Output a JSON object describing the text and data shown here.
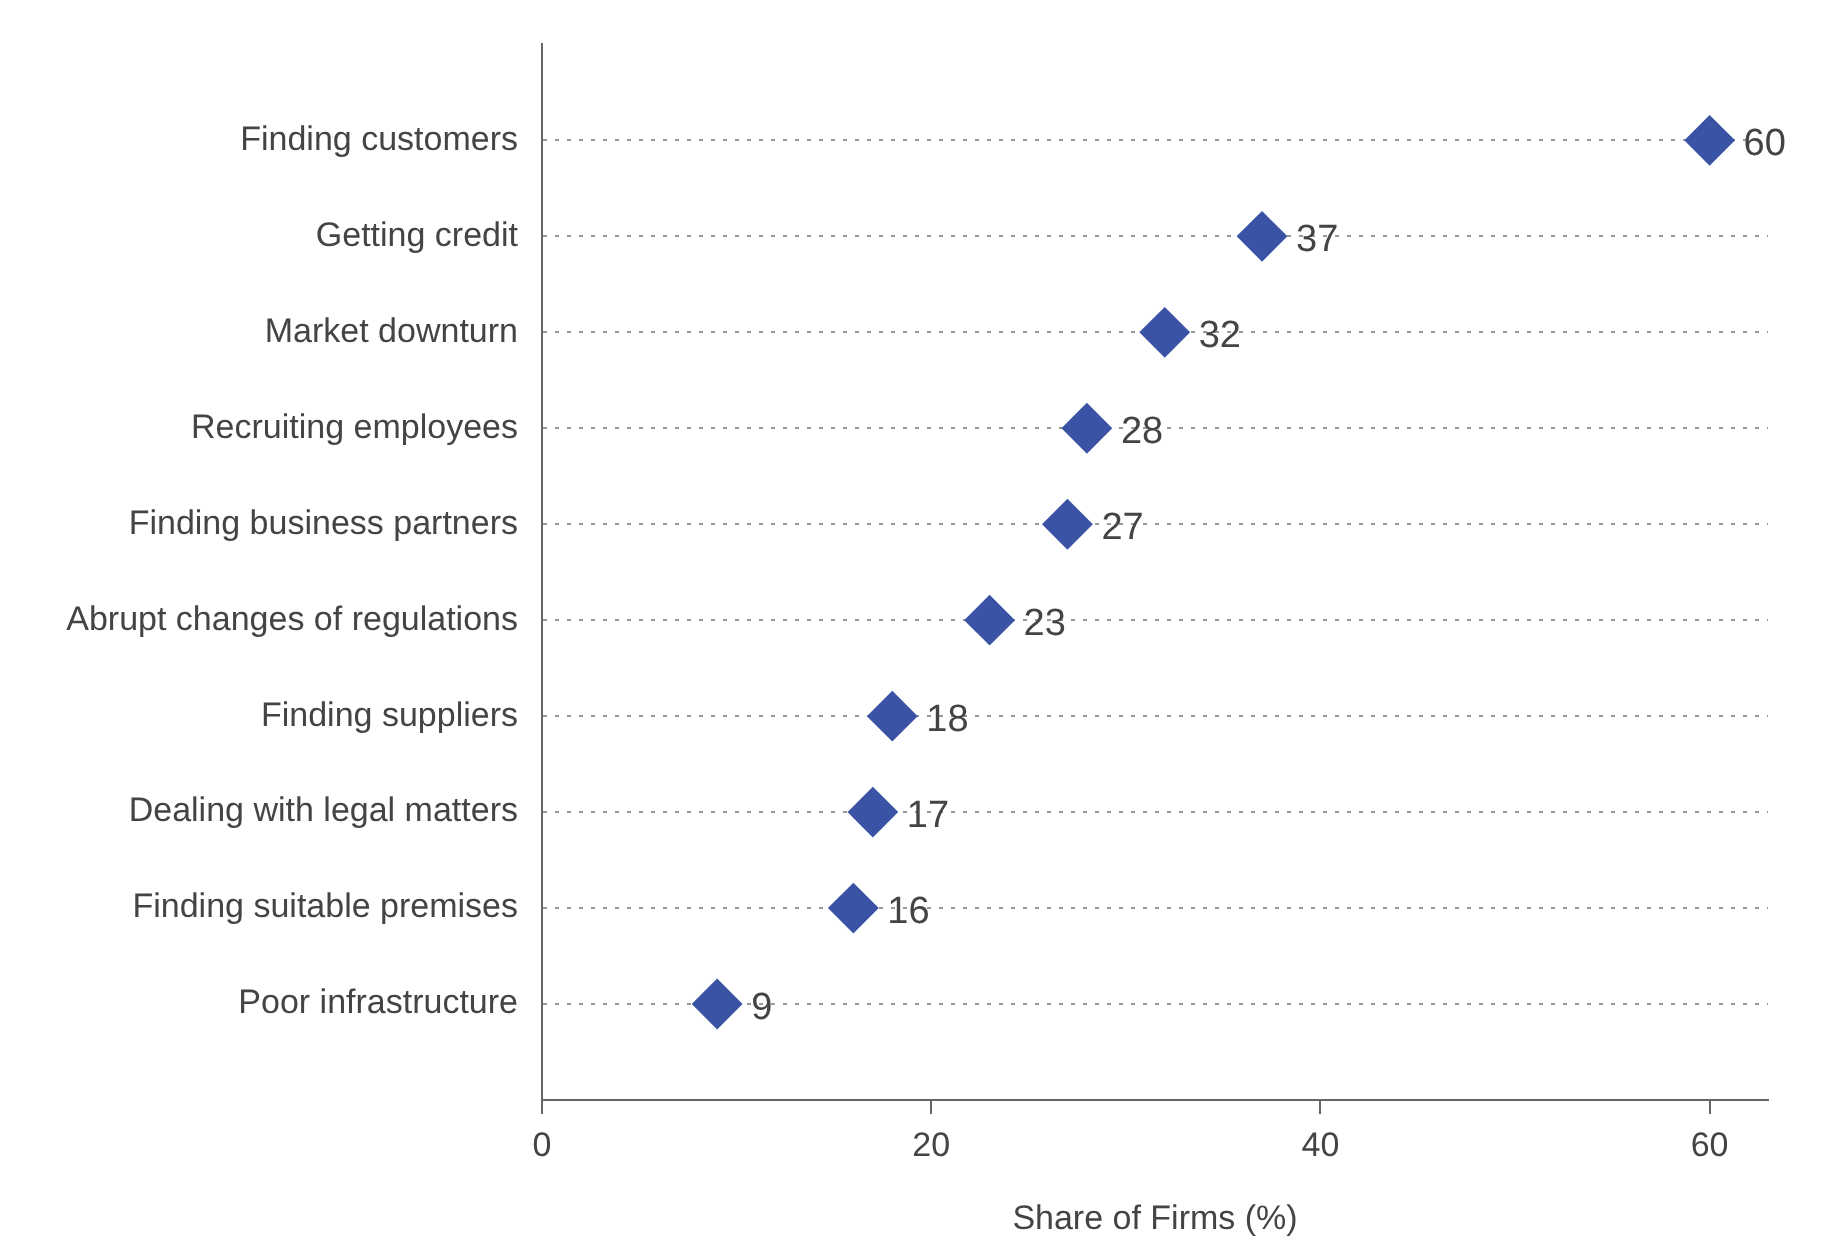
{
  "chart_data": {
    "type": "scatter",
    "orientation": "horizontal",
    "xlabel": "Share of Firms (%)",
    "categories": [
      "Finding customers",
      "Getting credit",
      "Market downturn",
      "Recruiting employees",
      "Finding business partners",
      "Abrupt changes of regulations",
      "Finding suppliers",
      "Dealing with legal matters",
      "Finding suitable premises",
      "Poor infrastructure"
    ],
    "values": [
      60,
      37,
      32,
      28,
      27,
      23,
      18,
      17,
      16,
      9
    ],
    "color": "#3a53a4",
    "marker": "diamond",
    "data_labels": true,
    "grid": "y",
    "xlim": [
      0,
      63
    ],
    "xticks": [
      0,
      20,
      40,
      60
    ]
  }
}
